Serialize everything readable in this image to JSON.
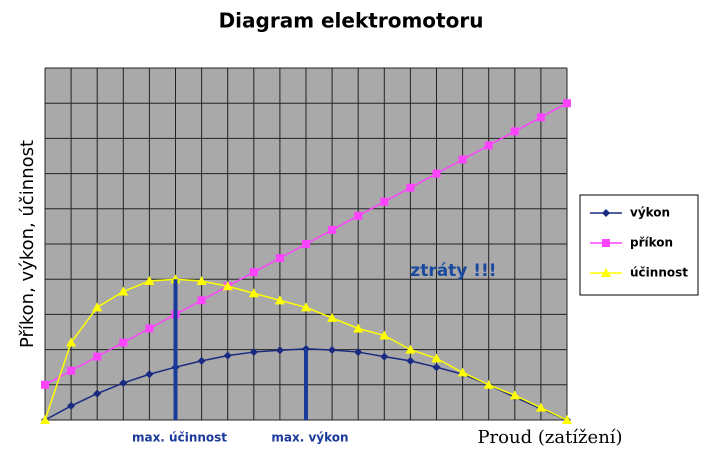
{
  "chart_data": {
    "type": "line",
    "title": "Diagram elektromotoru",
    "x_label": "Proud (zatížení)",
    "y_label": "Příkon, výkon, účinnost",
    "x": [
      0,
      1,
      2,
      3,
      4,
      5,
      6,
      7,
      8,
      9,
      10,
      11,
      12,
      13,
      14,
      15,
      16,
      17,
      18,
      19,
      20
    ],
    "xlim": [
      0,
      20
    ],
    "ylim": [
      0,
      10
    ],
    "xticks": [
      0,
      1,
      2,
      3,
      4,
      5,
      6,
      7,
      8,
      9,
      10,
      11,
      12,
      13,
      14,
      15,
      16,
      17,
      18,
      19,
      20
    ],
    "yticks": [
      0,
      1,
      2,
      3,
      4,
      5,
      6,
      7,
      8,
      9,
      10
    ],
    "grid": true,
    "legend": "right",
    "series": [
      {
        "name": "výkon",
        "color": "#1a2a80",
        "marker": "diamond",
        "values": [
          0,
          0.4,
          0.75,
          1.05,
          1.3,
          1.5,
          1.68,
          1.83,
          1.93,
          1.98,
          2.02,
          1.99,
          1.93,
          1.8,
          1.68,
          1.5,
          1.3,
          1.0,
          0.65,
          0.32,
          0
        ]
      },
      {
        "name": "příkon",
        "color": "#ff44ff",
        "marker": "square",
        "values": [
          1.0,
          1.4,
          1.8,
          2.2,
          2.6,
          3.0,
          3.4,
          3.8,
          4.2,
          4.6,
          5.0,
          5.4,
          5.8,
          6.2,
          6.6,
          7.0,
          7.4,
          7.8,
          8.2,
          8.6,
          9.0
        ]
      },
      {
        "name": "účinnost",
        "color": "#ffff00",
        "marker": "triangle",
        "values": [
          0,
          2.2,
          3.2,
          3.65,
          3.95,
          4.0,
          3.95,
          3.8,
          3.6,
          3.4,
          3.2,
          2.9,
          2.6,
          2.4,
          2.0,
          1.75,
          1.35,
          1.0,
          0.7,
          0.35,
          0
        ]
      }
    ],
    "annotations": {
      "max_efficiency": "max. účinnost",
      "max_power": "max. výkon",
      "losses": "ztráty !!!"
    }
  }
}
